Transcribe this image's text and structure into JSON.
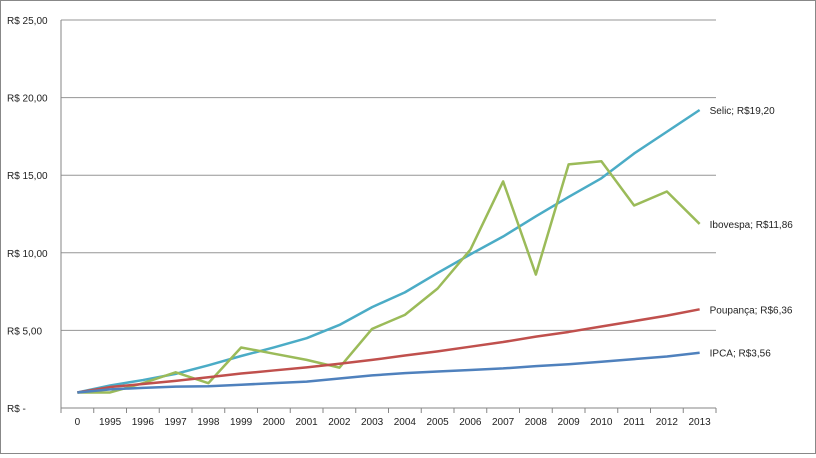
{
  "chart_data": {
    "type": "line",
    "title": "",
    "xlabel": "",
    "ylabel": "",
    "ylim": [
      0,
      25
    ],
    "grid": true,
    "categories": [
      "0",
      "1995",
      "1996",
      "1997",
      "1998",
      "1999",
      "2000",
      "2001",
      "2002",
      "2003",
      "2004",
      "2005",
      "2006",
      "2007",
      "2008",
      "2009",
      "2010",
      "2011",
      "2012",
      "2013"
    ],
    "y_ticks": [
      {
        "value": 0,
        "label": "R$ -"
      },
      {
        "value": 5,
        "label": "R$ 5,00"
      },
      {
        "value": 10,
        "label": "R$ 10,00"
      },
      {
        "value": 15,
        "label": "R$ 15,00"
      },
      {
        "value": 20,
        "label": "R$ 20,00"
      },
      {
        "value": 25,
        "label": "R$ 25,00"
      }
    ],
    "series": [
      {
        "name": "Selic",
        "color": "#4bacc6",
        "end_label": "Selic;  R$19,20",
        "values": [
          1.0,
          1.45,
          1.8,
          2.2,
          2.75,
          3.35,
          3.9,
          4.5,
          5.35,
          6.5,
          7.45,
          8.7,
          9.9,
          11.05,
          12.35,
          13.6,
          14.8,
          16.4,
          17.8,
          19.2
        ]
      },
      {
        "name": "Ibovespa",
        "color": "#9bbb59",
        "end_label": "Ibovespa;  R$11,86",
        "values": [
          1.0,
          1.0,
          1.6,
          2.3,
          1.6,
          3.9,
          3.5,
          3.1,
          2.6,
          5.1,
          6.0,
          7.7,
          10.2,
          14.6,
          8.6,
          15.7,
          15.9,
          13.05,
          13.95,
          11.86
        ]
      },
      {
        "name": "Poupança",
        "color": "#c0504d",
        "end_label": "Poupança;  R$6,36",
        "values": [
          1.0,
          1.35,
          1.55,
          1.75,
          1.98,
          2.22,
          2.42,
          2.62,
          2.85,
          3.1,
          3.38,
          3.65,
          3.95,
          4.25,
          4.6,
          4.9,
          5.25,
          5.6,
          5.95,
          6.36
        ]
      },
      {
        "name": "IPCA",
        "color": "#4f81bd",
        "end_label": "IPCA;  R$3,56",
        "values": [
          1.0,
          1.2,
          1.3,
          1.38,
          1.4,
          1.5,
          1.6,
          1.7,
          1.9,
          2.1,
          2.25,
          2.35,
          2.45,
          2.55,
          2.7,
          2.82,
          2.98,
          3.15,
          3.32,
          3.56
        ]
      }
    ]
  }
}
